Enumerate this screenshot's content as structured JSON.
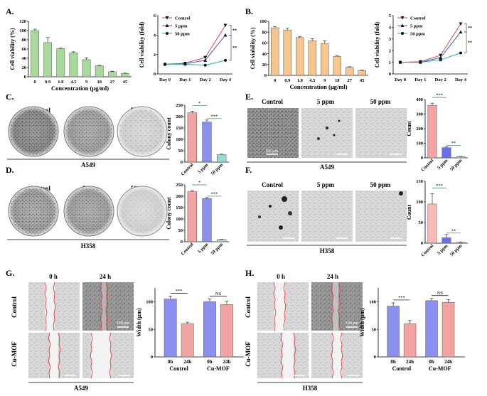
{
  "figure": {
    "panel_labels": [
      "A.",
      "B.",
      "C.",
      "D.",
      "E.",
      "F.",
      "G.",
      "H."
    ],
    "micro_conditions": [
      "Control",
      "5 ppm",
      "50 ppm"
    ],
    "wound_times": [
      "0 h",
      "24 h"
    ],
    "wound_rows": [
      "Control",
      "Cu-MOF"
    ],
    "cell_lines": [
      "A549",
      "H358"
    ],
    "scalebar_label": "100 μm"
  },
  "chart_data": [
    {
      "id": "A1",
      "panel": "A.",
      "type": "bar",
      "color": "#a8d99a",
      "categories": [
        "0",
        "0.9",
        "1.8",
        "4.5",
        "9",
        "18",
        "27",
        "45"
      ],
      "values": [
        100,
        74,
        61,
        52,
        37,
        24,
        11,
        7
      ],
      "errors": [
        3,
        11,
        1,
        2,
        4,
        1,
        1,
        1
      ],
      "ylabel": "Cell viability (%)",
      "xlabel": "Concentration (μg/ml)",
      "ylim": [
        0,
        120
      ],
      "yticks": [
        0,
        20,
        40,
        60,
        80,
        100,
        120
      ]
    },
    {
      "id": "A2",
      "panel": "A.",
      "type": "line",
      "categories": [
        "Day 0",
        "Day 1",
        "Day 2",
        "Day 4"
      ],
      "ylabel": "Cell viability (fold)",
      "ylim": [
        0,
        6
      ],
      "yticks": [
        0,
        2,
        4,
        6
      ],
      "series": [
        {
          "name": "Control",
          "color": "#d84c4c",
          "marker": "tri-down",
          "values": [
            1,
            1.1,
            1.7,
            5.0
          ]
        },
        {
          "name": "5 ppm",
          "color": "#4a56d1",
          "marker": "tri-up",
          "values": [
            1,
            1.05,
            1.4,
            4.0
          ]
        },
        {
          "name": "50 ppm",
          "color": "#1fb8a6",
          "marker": "circle",
          "values": [
            1,
            1.0,
            0.9,
            1.4
          ]
        }
      ],
      "annotations": [
        "**",
        "**"
      ]
    },
    {
      "id": "B1",
      "panel": "B.",
      "type": "bar",
      "color": "#f5c78d",
      "categories": [
        "0",
        "0.9",
        "1.8",
        "4.5",
        "9",
        "18",
        "27",
        "45"
      ],
      "values": [
        88,
        84,
        70,
        64,
        59,
        35,
        15,
        9
      ],
      "errors": [
        2,
        3,
        2,
        4,
        5,
        1,
        1,
        1
      ],
      "ylabel": "Cell viability (%)",
      "xlabel": "Concentration (μg/ml)",
      "ylim": [
        0,
        100
      ],
      "yticks": [
        0,
        20,
        40,
        60,
        80,
        100
      ]
    },
    {
      "id": "B2",
      "panel": "B.",
      "type": "line",
      "categories": [
        "Day 0",
        "Day 1",
        "Day 2",
        "Day 4"
      ],
      "ylabel": "Cell viability (fold)",
      "ylim": [
        0,
        5
      ],
      "yticks": [
        0,
        1,
        2,
        3,
        4,
        5
      ],
      "series": [
        {
          "name": "Control",
          "color": "#d84c4c",
          "marker": "tri-down",
          "values": [
            1,
            1.05,
            1.6,
            4.3
          ]
        },
        {
          "name": "5 ppm",
          "color": "#4a56d1",
          "marker": "tri-up",
          "values": [
            1,
            1.0,
            1.4,
            3.6
          ]
        },
        {
          "name": "50 ppm",
          "color": "#1fb8a6",
          "marker": "circle",
          "values": [
            1,
            1.0,
            1.2,
            1.8
          ]
        }
      ],
      "annotations": [
        "**",
        "**"
      ]
    },
    {
      "id": "C",
      "panel": "C.",
      "type": "bar",
      "categories": [
        "Control",
        "5 ppm",
        "50 ppm"
      ],
      "colors": [
        "#f4a3a3",
        "#8a8ff0",
        "#9ad9d0"
      ],
      "values": [
        217,
        176,
        33
      ],
      "errors": [
        7,
        9,
        2
      ],
      "ylabel": "Colony count",
      "ylim": [
        0,
        250
      ],
      "yticks": [
        0,
        50,
        100,
        150,
        200,
        250
      ],
      "annotations": [
        "*",
        "***"
      ],
      "caption": "A549"
    },
    {
      "id": "D",
      "panel": "D.",
      "type": "bar",
      "categories": [
        "Control",
        "5 ppm",
        "50 ppm"
      ],
      "colors": [
        "#f4a3a3",
        "#8a8ff0",
        "#9ad9d0"
      ],
      "values": [
        220,
        190,
        10
      ],
      "errors": [
        5,
        4,
        1
      ],
      "ylabel": "Colony count",
      "ylim": [
        0,
        250
      ],
      "yticks": [
        0,
        50,
        100,
        150,
        200,
        250
      ],
      "annotations": [
        "*",
        "***"
      ],
      "caption": "H358"
    },
    {
      "id": "E",
      "panel": "E.",
      "type": "bar",
      "categories": [
        "Control",
        "5 ppm",
        "50 ppm"
      ],
      "colors": [
        "#f4a3a3",
        "#6a6ff0",
        "#9ad9d0"
      ],
      "values": [
        360,
        70,
        8
      ],
      "errors": [
        15,
        6,
        2
      ],
      "ylabel": "Count",
      "ylim": [
        0,
        400
      ],
      "yticks": [
        0,
        100,
        200,
        300,
        400
      ],
      "annotations": [
        "***",
        "**"
      ],
      "caption": "A549"
    },
    {
      "id": "F",
      "panel": "F.",
      "type": "bar",
      "categories": [
        "Control",
        "5 ppm",
        "50 ppm"
      ],
      "colors": [
        "#f7b8b8",
        "#6a6ff0",
        "#9ad9d0"
      ],
      "values": [
        95,
        13,
        2
      ],
      "errors": [
        25,
        8,
        1
      ],
      "ylabel": "Count",
      "ylim": [
        0,
        150
      ],
      "yticks": [
        0,
        50,
        100,
        150
      ],
      "annotations": [
        "***",
        "**"
      ],
      "caption": "H358"
    },
    {
      "id": "G",
      "panel": "G.",
      "type": "bar",
      "categories": [
        "0h",
        "24h",
        "0h",
        "24h"
      ],
      "groups": [
        "Control",
        "Cu-MOF"
      ],
      "colors": [
        "#8a8ff0",
        "#f4a3a3",
        "#8a8ff0",
        "#f4a3a3"
      ],
      "values": [
        105,
        60,
        100,
        95
      ],
      "errors": [
        5,
        3,
        5,
        6
      ],
      "ylabel": "Width (μm)",
      "ylim": [
        0,
        125
      ],
      "yticks": [
        0,
        50,
        100
      ],
      "annotations": [
        "***",
        "NS"
      ],
      "caption": "A549"
    },
    {
      "id": "H",
      "panel": "H.",
      "type": "bar",
      "categories": [
        "0h",
        "24h",
        "0h",
        "24h"
      ],
      "groups": [
        "Control",
        "Cu-MOF"
      ],
      "colors": [
        "#8a8ff0",
        "#f4a3a3",
        "#8a8ff0",
        "#f4a3a3"
      ],
      "values": [
        92,
        60,
        102,
        99
      ],
      "errors": [
        6,
        6,
        4,
        5
      ],
      "ylabel": "Width (μm)",
      "ylim": [
        0,
        125
      ],
      "yticks": [
        0,
        50,
        100
      ],
      "annotations": [
        "***",
        "NS"
      ],
      "caption": "H358"
    }
  ]
}
